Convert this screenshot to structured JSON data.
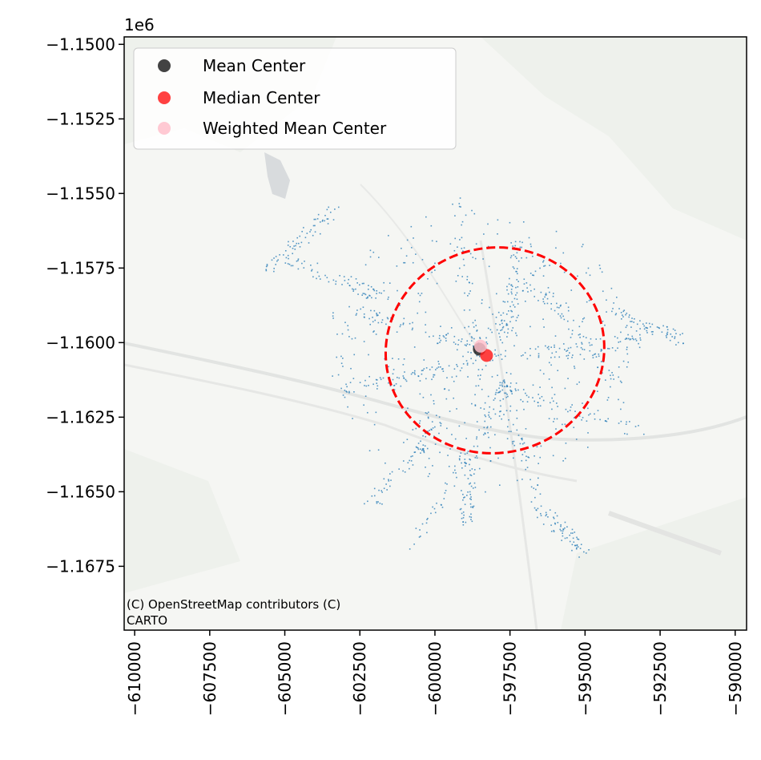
{
  "chart_data": {
    "type": "scatter",
    "title": "",
    "xlabel": "",
    "ylabel": "",
    "y_offset_label": "1e6",
    "xlim": [
      -610350,
      -589620
    ],
    "ylim": [
      -1.16964,
      -1.14975
    ],
    "x_ticks": [
      -610000,
      -607500,
      -605000,
      -602500,
      -600000,
      -597500,
      -595000,
      -592500,
      -590000
    ],
    "x_tick_labels": [
      "−610000",
      "−607500",
      "−605000",
      "−602500",
      "−600000",
      "−597500",
      "−595000",
      "−592500",
      "−590000"
    ],
    "y_ticks": [
      -1.15,
      -1.1525,
      -1.155,
      -1.1575,
      -1.16,
      -1.1625,
      -1.165,
      -1.1675
    ],
    "y_tick_labels": [
      "−1.1500",
      "−1.1525",
      "−1.1550",
      "−1.1575",
      "−1.1600",
      "−1.1625",
      "−1.1650",
      "−1.1675"
    ],
    "grid": false,
    "legend_position": "top-left",
    "series": [
      {
        "name": "Mean Center",
        "color": "#222222",
        "x": [
          -598520
        ],
        "y": [
          -1.16022
        ]
      },
      {
        "name": "Median Center",
        "color": "#ff2020",
        "x": [
          -598280
        ],
        "y": [
          -1.16043
        ]
      },
      {
        "name": "Weighted Mean Center",
        "color": "#ffc0cb",
        "x": [
          -598480
        ],
        "y": [
          -1.16012
        ]
      }
    ],
    "ellipse": {
      "color": "#ff0000",
      "style": "dashed",
      "center_x": -598000,
      "center_y": -1.16026,
      "width_x": 7300,
      "height_y": 0.00688,
      "angle_deg": -12
    },
    "points_color": "#1f77b4",
    "attribution": "(C) OpenStreetMap contributors (C) CARTO",
    "attribution_lines": [
      "(C) OpenStreetMap contributors (C)",
      "CARTO"
    ]
  }
}
